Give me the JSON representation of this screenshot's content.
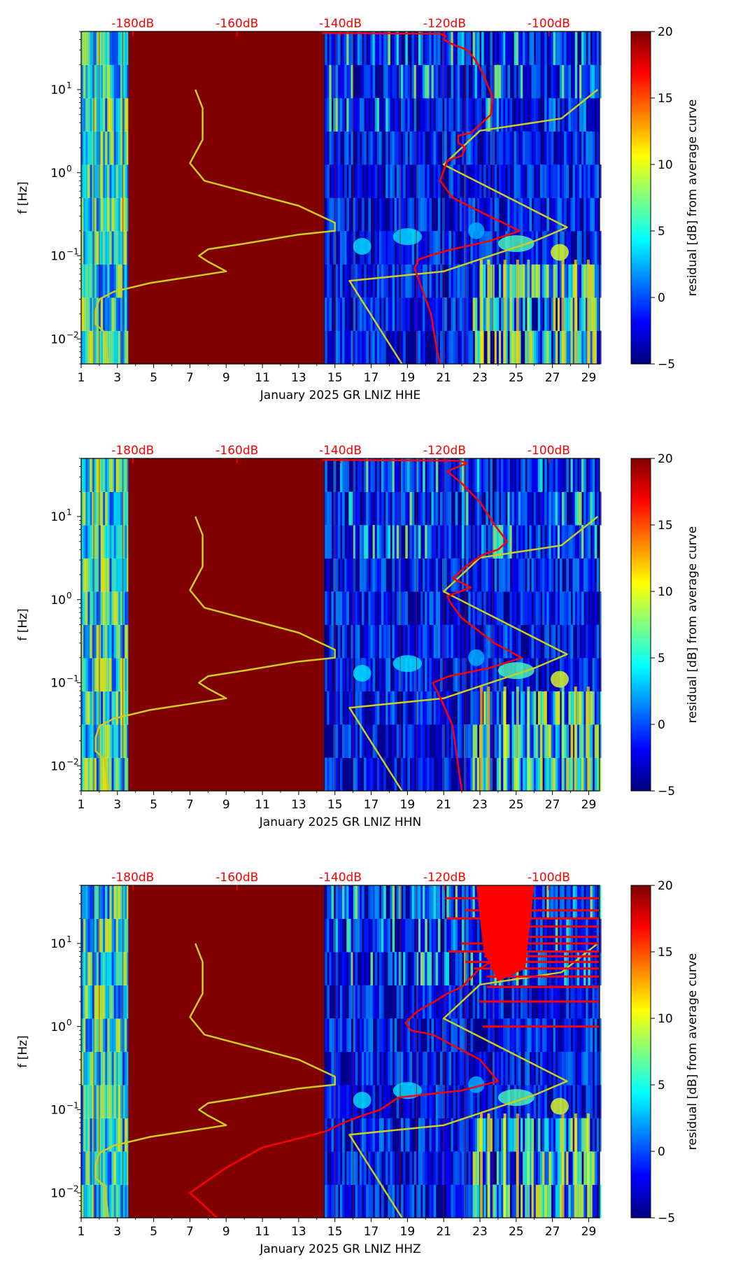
{
  "colormap": "jet",
  "colors": {
    "fill_dark_red": "#800000",
    "nlnm_curve": "#cccc22",
    "psd_curve": "#ff0000",
    "top_axis_text": "#ff0000"
  },
  "chart_data": [
    {
      "type": "heatmap",
      "channel": "HHE",
      "xlabel": "January 2025 GR LNIZ  HHE",
      "ylabel": "f [Hz]",
      "x_ticks": [
        "1",
        "3",
        "5",
        "7",
        "9",
        "11",
        "13",
        "15",
        "17",
        "19",
        "21",
        "23",
        "25",
        "27",
        "29"
      ],
      "xlim": [
        1,
        29.6
      ],
      "ylim": [
        0.005,
        50
      ],
      "y_scale": "log",
      "y_ticks": [
        {
          "base": "10",
          "exp": "1",
          "value": 10
        },
        {
          "base": "10",
          "exp": "0",
          "value": 1
        },
        {
          "base": "10",
          "exp": "−1",
          "value": 0.1
        },
        {
          "base": "10",
          "exp": "−2",
          "value": 0.01
        }
      ],
      "top_ticks": [
        "-180dB",
        "-160dB",
        "-140dB",
        "-120dB",
        "-100dB"
      ],
      "top_tick_days": [
        3.85,
        9.6,
        15.3,
        21.05,
        26.8
      ],
      "colorbar": {
        "label": "residual [dB] from average curve",
        "range": [
          -5,
          20
        ],
        "ticks": [
          "20",
          "15",
          "10",
          "5",
          "0",
          "−5"
        ]
      },
      "data_gap_days": [
        3.6,
        14.4
      ],
      "nlnm_curve": {
        "day": [
          7.3,
          7.7,
          7.7,
          7.0,
          7.8,
          13.0,
          15.0,
          15.0,
          13.0,
          10.0,
          8.0,
          7.5,
          8.0,
          9.0,
          4.8,
          2.8,
          2.0,
          1.8,
          1.8,
          2.3,
          2.5
        ],
        "freq": [
          10,
          6,
          2.5,
          1.3,
          0.8,
          0.4,
          0.25,
          0.2,
          0.18,
          0.14,
          0.12,
          0.1,
          0.085,
          0.065,
          0.047,
          0.037,
          0.03,
          0.022,
          0.015,
          0.012,
          0.005
        ]
      },
      "nhnm_curve": {
        "day": [
          29.5,
          27.5,
          23.0,
          21.0,
          27.8,
          26.0,
          21.0,
          15.8,
          18.7
        ],
        "freq": [
          10,
          4.5,
          3.2,
          1.25,
          0.22,
          0.15,
          0.065,
          0.05,
          0.005
        ]
      },
      "psd_curve": {
        "day": [
          14.3,
          20.8,
          21.1,
          21.0,
          21.5,
          22.3,
          22.8,
          23.2,
          23.7,
          23.6,
          22.5,
          21.8,
          21.8,
          22.2,
          22.0,
          21.2,
          20.8,
          21.5,
          23.5,
          25.2,
          23.5,
          21.5,
          20.2,
          19.6,
          19.4,
          19.8,
          20.3,
          20.6,
          20.8
        ],
        "freq": [
          48,
          47,
          44,
          40,
          35,
          30,
          22,
          15,
          8,
          5,
          3,
          2.8,
          2.3,
          2.0,
          1.6,
          1.4,
          0.8,
          0.5,
          0.3,
          0.2,
          0.15,
          0.12,
          0.1,
          0.09,
          0.07,
          0.04,
          0.02,
          0.008,
          0.005
        ]
      }
    },
    {
      "type": "heatmap",
      "channel": "HHN",
      "xlabel": "January 2025 GR LNIZ  HHN",
      "ylabel": "f [Hz]",
      "x_ticks": [
        "1",
        "3",
        "5",
        "7",
        "9",
        "11",
        "13",
        "15",
        "17",
        "19",
        "21",
        "23",
        "25",
        "27",
        "29"
      ],
      "xlim": [
        1,
        29.6
      ],
      "ylim": [
        0.005,
        50
      ],
      "y_scale": "log",
      "y_ticks": [
        {
          "base": "10",
          "exp": "1",
          "value": 10
        },
        {
          "base": "10",
          "exp": "0",
          "value": 1
        },
        {
          "base": "10",
          "exp": "−1",
          "value": 0.1
        },
        {
          "base": "10",
          "exp": "−2",
          "value": 0.01
        }
      ],
      "top_ticks": [
        "-180dB",
        "-160dB",
        "-140dB",
        "-120dB",
        "-100dB"
      ],
      "top_tick_days": [
        3.85,
        9.6,
        15.3,
        21.05,
        26.8
      ],
      "colorbar": {
        "label": "residual [dB] from average curve",
        "range": [
          -5,
          20
        ],
        "ticks": [
          "20",
          "15",
          "10",
          "5",
          "0",
          "−5"
        ]
      },
      "data_gap_days": [
        3.6,
        14.4
      ],
      "nlnm_curve": {
        "day": [
          7.3,
          7.7,
          7.7,
          7.0,
          7.8,
          13.0,
          15.0,
          15.0,
          13.0,
          10.0,
          8.0,
          7.5,
          8.0,
          9.0,
          4.8,
          2.8,
          2.0,
          1.8,
          1.8,
          2.3,
          2.5
        ],
        "freq": [
          10,
          6,
          2.5,
          1.3,
          0.8,
          0.4,
          0.25,
          0.2,
          0.18,
          0.14,
          0.12,
          0.1,
          0.085,
          0.065,
          0.047,
          0.037,
          0.03,
          0.022,
          0.015,
          0.012,
          0.005
        ]
      },
      "nhnm_curve": {
        "day": [
          29.5,
          27.5,
          23.0,
          21.0,
          27.8,
          26.0,
          21.0,
          15.8,
          18.7
        ],
        "freq": [
          10,
          4.5,
          3.2,
          1.25,
          0.22,
          0.15,
          0.065,
          0.05,
          0.005
        ]
      },
      "psd_curve": {
        "day": [
          14.3,
          21.8,
          22.3,
          21.2,
          22.0,
          23.0,
          23.8,
          24.5,
          24.0,
          23.2,
          22.2,
          21.5,
          22.5,
          21.2,
          21.4,
          22.0,
          23.8,
          25.3,
          23.5,
          21.3,
          20.4,
          20.9,
          21.5,
          21.8,
          22.0
        ],
        "freq": [
          48,
          47,
          44,
          35,
          25,
          15,
          8,
          5,
          4,
          3.5,
          2.5,
          1.8,
          1.4,
          1.1,
          0.9,
          0.6,
          0.3,
          0.2,
          0.15,
          0.12,
          0.1,
          0.06,
          0.03,
          0.01,
          0.005
        ]
      }
    },
    {
      "type": "heatmap",
      "channel": "HHZ",
      "xlabel": "January 2025 GR LNIZ  HHZ",
      "ylabel": "f [Hz]",
      "x_ticks": [
        "1",
        "3",
        "5",
        "7",
        "9",
        "11",
        "13",
        "15",
        "17",
        "19",
        "21",
        "23",
        "25",
        "27",
        "29"
      ],
      "xlim": [
        1,
        29.6
      ],
      "ylim": [
        0.005,
        50
      ],
      "y_scale": "log",
      "y_ticks": [
        {
          "base": "10",
          "exp": "1",
          "value": 10
        },
        {
          "base": "10",
          "exp": "0",
          "value": 1
        },
        {
          "base": "10",
          "exp": "−1",
          "value": 0.1
        },
        {
          "base": "10",
          "exp": "−2",
          "value": 0.01
        }
      ],
      "top_ticks": [
        "-180dB",
        "-160dB",
        "-140dB",
        "-120dB",
        "-100dB"
      ],
      "top_tick_days": [
        3.85,
        9.6,
        15.3,
        21.05,
        26.8
      ],
      "colorbar": {
        "label": "residual [dB] from average curve",
        "range": [
          -5,
          20
        ],
        "ticks": [
          "20",
          "15",
          "10",
          "5",
          "0",
          "−5"
        ]
      },
      "data_gap_days": [
        3.6,
        14.4
      ],
      "nlnm_curve": {
        "day": [
          7.3,
          7.7,
          7.7,
          7.0,
          7.8,
          13.0,
          15.0,
          15.0,
          13.0,
          10.0,
          8.0,
          7.5,
          8.0,
          9.0,
          4.8,
          2.8,
          2.0,
          1.8,
          1.8,
          2.3,
          2.5
        ],
        "freq": [
          10,
          6,
          2.5,
          1.3,
          0.8,
          0.4,
          0.25,
          0.2,
          0.18,
          0.14,
          0.12,
          0.1,
          0.085,
          0.065,
          0.047,
          0.037,
          0.03,
          0.022,
          0.015,
          0.012,
          0.005
        ]
      },
      "nhnm_curve": {
        "day": [
          29.5,
          27.5,
          23.0,
          21.0,
          27.8,
          26.0,
          21.0,
          15.8,
          18.7
        ],
        "freq": [
          10,
          4.5,
          3.2,
          1.25,
          0.22,
          0.15,
          0.065,
          0.05,
          0.005
        ]
      },
      "psd_curve": {
        "day": [
          26.0,
          23.5,
          24.0,
          25.5,
          24.5,
          23.0,
          22.0,
          21.2,
          20.5,
          19.5,
          18.9,
          19.2,
          20.4,
          23.0,
          24.0,
          22.0,
          18.5,
          17.5,
          16.5,
          15.5,
          14.5,
          13.0,
          11.0,
          9.0,
          7.0,
          7.5,
          8.5
        ],
        "freq": [
          48,
          40,
          25,
          15,
          8,
          5,
          3,
          2.5,
          2,
          1.5,
          1.1,
          0.9,
          0.8,
          0.4,
          0.22,
          0.17,
          0.14,
          0.1,
          0.085,
          0.07,
          0.055,
          0.045,
          0.035,
          0.02,
          0.01,
          0.008,
          0.005
        ]
      },
      "psd_spike_freqs": [
        35,
        25,
        20,
        16,
        12,
        10,
        8,
        7,
        6,
        5,
        4,
        3,
        2,
        1
      ]
    }
  ]
}
